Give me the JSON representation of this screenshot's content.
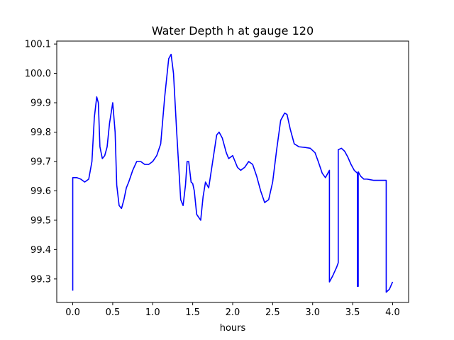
{
  "chart_data": {
    "type": "line",
    "title": "Water Depth h at gauge 120",
    "xlabel": "hours",
    "ylabel": "",
    "xlim": [
      -0.2,
      4.2
    ],
    "ylim": [
      99.22,
      100.11
    ],
    "x_ticks": [
      0.0,
      0.5,
      1.0,
      1.5,
      2.0,
      2.5,
      3.0,
      3.5,
      4.0
    ],
    "x_tick_labels": [
      "0.0",
      "0.5",
      "1.0",
      "1.5",
      "2.0",
      "2.5",
      "3.0",
      "3.5",
      "4.0"
    ],
    "y_ticks": [
      99.3,
      99.4,
      99.5,
      99.6,
      99.7,
      99.8,
      99.9,
      100.0,
      100.1
    ],
    "y_tick_labels": [
      "99.3",
      "99.4",
      "99.5",
      "99.6",
      "99.7",
      "99.8",
      "99.9",
      "100.0",
      "100.1"
    ],
    "grid": false,
    "series": [
      {
        "color": "#0000ff",
        "x": [
          0.0,
          0.0,
          0.05,
          0.1,
          0.15,
          0.2,
          0.24,
          0.27,
          0.3,
          0.32,
          0.34,
          0.37,
          0.4,
          0.43,
          0.46,
          0.5,
          0.53,
          0.55,
          0.58,
          0.61,
          0.64,
          0.67,
          0.7,
          0.75,
          0.8,
          0.85,
          0.9,
          0.95,
          1.0,
          1.05,
          1.1,
          1.15,
          1.2,
          1.23,
          1.26,
          1.3,
          1.35,
          1.38,
          1.41,
          1.43,
          1.45,
          1.48,
          1.5,
          1.52,
          1.55,
          1.6,
          1.63,
          1.66,
          1.7,
          1.75,
          1.8,
          1.83,
          1.87,
          1.92,
          1.95,
          2.0,
          2.03,
          2.06,
          2.1,
          2.15,
          2.2,
          2.25,
          2.3,
          2.35,
          2.4,
          2.45,
          2.5,
          2.55,
          2.6,
          2.65,
          2.68,
          2.72,
          2.77,
          2.83,
          2.9,
          2.97,
          3.03,
          3.07,
          3.12,
          3.16,
          3.19,
          3.21,
          3.21,
          3.25,
          3.3,
          3.32,
          3.32,
          3.36,
          3.4,
          3.44,
          3.48,
          3.52,
          3.56,
          3.56,
          3.57,
          3.57,
          3.6,
          3.64,
          3.68,
          3.72,
          3.76,
          3.8,
          3.85,
          3.9,
          3.92,
          3.92,
          3.96,
          4.0
        ],
        "y": [
          99.26,
          99.645,
          99.645,
          99.64,
          99.63,
          99.64,
          99.7,
          99.85,
          99.92,
          99.9,
          99.75,
          99.71,
          99.72,
          99.75,
          99.83,
          99.9,
          99.8,
          99.62,
          99.55,
          99.54,
          99.57,
          99.61,
          99.63,
          99.67,
          99.7,
          99.7,
          99.69,
          99.69,
          99.7,
          99.72,
          99.76,
          99.92,
          100.05,
          100.065,
          100.0,
          99.8,
          99.57,
          99.55,
          99.62,
          99.7,
          99.7,
          99.63,
          99.625,
          99.6,
          99.52,
          99.5,
          99.58,
          99.63,
          99.61,
          99.7,
          99.79,
          99.8,
          99.78,
          99.73,
          99.71,
          99.72,
          99.7,
          99.68,
          99.67,
          99.68,
          99.7,
          99.69,
          99.65,
          99.6,
          99.56,
          99.57,
          99.63,
          99.74,
          99.84,
          99.865,
          99.86,
          99.81,
          99.76,
          99.75,
          99.748,
          99.745,
          99.73,
          99.7,
          99.66,
          99.645,
          99.66,
          99.67,
          99.29,
          99.31,
          99.34,
          99.355,
          99.74,
          99.745,
          99.735,
          99.715,
          99.69,
          99.67,
          99.66,
          99.275,
          99.275,
          99.665,
          99.65,
          99.64,
          99.64,
          99.638,
          99.636,
          99.636,
          99.636,
          99.636,
          99.636,
          99.255,
          99.265,
          99.29
        ]
      }
    ]
  }
}
